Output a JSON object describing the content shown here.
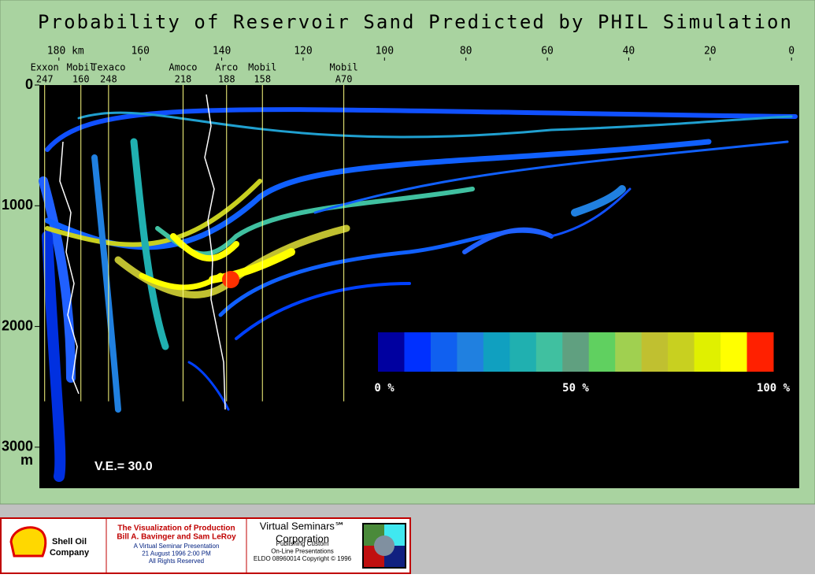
{
  "chart_data": {
    "type": "section",
    "title": "Probability of Reservoir Sand Predicted by PHIL Simulation",
    "xlim": [
      184.8,
      -1.9
    ],
    "ylim": [
      0,
      3340
    ],
    "xticks": [
      {
        "value": 180,
        "label": "180 km"
      },
      160,
      140,
      120,
      100,
      80,
      60,
      40,
      20,
      0
    ],
    "yticks": [
      0,
      1000,
      2000,
      3000
    ],
    "y_label": "m",
    "wells": [
      {
        "name": "Exxon",
        "id": "247",
        "x": 183.5
      },
      {
        "name": "Mobil",
        "id": "160",
        "x": 174.6
      },
      {
        "name": "Texaco",
        "id": "248",
        "x": 167.8
      },
      {
        "name": "Amoco",
        "id": "218",
        "x": 149.5
      },
      {
        "name": "Arco",
        "id": "188",
        "x": 138.8
      },
      {
        "name": "Mobil",
        "id": "158",
        "x": 130
      },
      {
        "name": "Mobil",
        "id": "A70",
        "x": 110
      }
    ],
    "well_depth": 2620,
    "well_color": "#ffff80",
    "colorbar": {
      "colors": [
        "#0000a0",
        "#0030ff",
        "#1060f0",
        "#2080e0",
        "#10a0c0",
        "#20b0b0",
        "#40c0a0",
        "#60a080",
        "#60d060",
        "#a0d050",
        "#c0c030",
        "#c8d020",
        "#e0f000",
        "#ffff00",
        "#ff2000"
      ],
      "ticks": [
        {
          "value": 0,
          "label": "0 %"
        },
        {
          "value": 50,
          "label": "50 %"
        },
        {
          "value": 100,
          "label": "100 %"
        }
      ]
    },
    "annotation": "V.E.= 30.0"
  },
  "footer": {
    "company": "Shell Oil Company",
    "lines": [
      "The Visualization of Production",
      "Bill A. Bavinger and Sam LeRoy",
      "A Virtual Seminar Presentation",
      "21 August 1996 2:00 PM",
      "All Rights Reserved"
    ],
    "publisher": [
      "Virtual Seminars℠",
      "Corporation",
      "Publishing Custom",
      "On-Line Presentations",
      "ELDO 08960014 Copyright © 1996"
    ]
  }
}
